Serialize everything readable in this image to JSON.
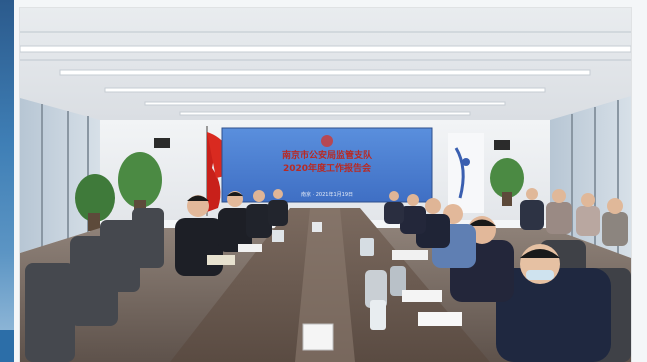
{
  "photo": {
    "screen": {
      "title_line1": "南京市公安局监管支队",
      "title_line2": "2020年度工作报告会",
      "footer": "南京 · 2021年1月19日"
    }
  },
  "colors": {
    "screen_blue": "#4a7fd1",
    "flag_red": "#c8201a",
    "uniform_dark": "#1d1f26",
    "table_wood": "#6b5a4f"
  }
}
